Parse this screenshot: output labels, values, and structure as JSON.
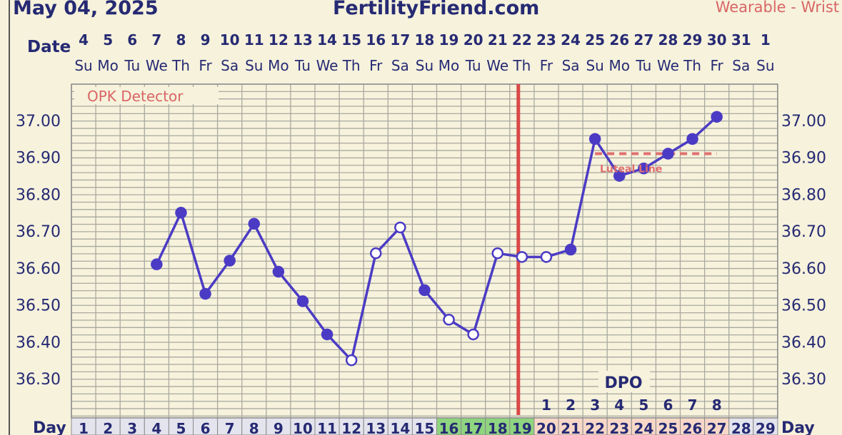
{
  "header": {
    "date": "May 04, 2025",
    "site": "FertilityFriend.com",
    "mode": "Wearable - Wrist"
  },
  "labels": {
    "date_row": "Date",
    "day_row": "Day",
    "opk": "OPK Detector",
    "dpo": "DPO",
    "luteal": "Luteal Line"
  },
  "colors": {
    "line": "#4b3bc4",
    "ovulation": "#d94848",
    "coverline": "#e07070",
    "fertile": "#8fd47f",
    "luteal_cells": "#f7d8c8",
    "grid": "#a9a9a0",
    "background": "#f6f2dc"
  },
  "chart_data": {
    "type": "line",
    "dates": [
      "4",
      "5",
      "6",
      "7",
      "8",
      "9",
      "10",
      "11",
      "12",
      "13",
      "14",
      "15",
      "16",
      "17",
      "18",
      "19",
      "20",
      "21",
      "22",
      "23",
      "24",
      "25",
      "26",
      "27",
      "28",
      "29",
      "30",
      "31",
      "1"
    ],
    "weekdays": [
      "Su",
      "Mo",
      "Tu",
      "We",
      "Th",
      "Fr",
      "Sa",
      "Su",
      "Mo",
      "Tu",
      "We",
      "Th",
      "Fr",
      "Sa",
      "Su",
      "Mo",
      "Tu",
      "We",
      "Th",
      "Fr",
      "Sa",
      "Su",
      "Mo",
      "Tu",
      "We",
      "Th",
      "Fr",
      "Sa",
      "Su"
    ],
    "cycle_days": [
      "1",
      "2",
      "3",
      "4",
      "5",
      "6",
      "7",
      "8",
      "9",
      "10",
      "11",
      "12",
      "13",
      "14",
      "15",
      "16",
      "17",
      "18",
      "19",
      "20",
      "21",
      "22",
      "23",
      "24",
      "25",
      "26",
      "27",
      "28",
      "29"
    ],
    "temps": [
      null,
      null,
      null,
      36.61,
      36.75,
      36.53,
      36.62,
      36.72,
      36.59,
      36.51,
      36.42,
      36.35,
      36.64,
      36.71,
      36.54,
      36.46,
      36.42,
      36.64,
      36.63,
      36.63,
      36.65,
      36.95,
      36.85,
      36.87,
      36.91,
      36.95,
      37.01,
      null,
      null
    ],
    "open_points": [
      12,
      13,
      14,
      16,
      17,
      18,
      19,
      20
    ],
    "fertile_days": [
      16,
      17,
      18
    ],
    "ovulation_day": 19,
    "dpo": [
      "1",
      "2",
      "3",
      "4",
      "5",
      "6",
      "7",
      "8"
    ],
    "dpo_start_day": 20,
    "coverline": 36.91,
    "y_ticks": [
      "37.00",
      "36.90",
      "36.80",
      "36.70",
      "36.60",
      "36.50",
      "36.40",
      "36.30"
    ],
    "ylim": [
      36.2,
      37.06
    ]
  }
}
